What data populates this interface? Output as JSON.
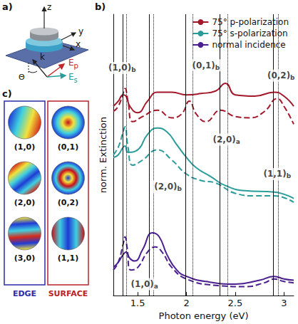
{
  "chart_data": {
    "type": "line",
    "panel_label": "b)",
    "xlabel": "Photon energy (eV)",
    "ylabel": "norm. Extinction",
    "xlim": [
      1.25,
      3.1
    ],
    "xticks": [
      1.5,
      2,
      2.5,
      3
    ],
    "ylim": [
      0,
      11
    ],
    "yticks": [],
    "tick_labels": "x",
    "grid": false,
    "legend": "top-right",
    "series": [
      {
        "name": "75° p-polarization",
        "color": "#a3172a",
        "line_style": "solid",
        "x": [
          1.25,
          1.3,
          1.35,
          1.38,
          1.42,
          1.5,
          1.6,
          1.7,
          1.85,
          2.0,
          2.15,
          2.3,
          2.4,
          2.5,
          2.7,
          2.9,
          3.0,
          3.1
        ],
        "values": [
          7.4,
          7.6,
          7.85,
          7.8,
          7.4,
          7.15,
          7.6,
          7.95,
          7.95,
          7.85,
          7.9,
          8.0,
          8.3,
          7.85,
          7.8,
          7.95,
          7.8,
          7.4
        ]
      },
      {
        "name": "75° p-polarization",
        "color": "#a3172a",
        "line_style": "dashed",
        "x": [
          1.25,
          1.3,
          1.35,
          1.37,
          1.4,
          1.45,
          1.55,
          1.7,
          1.85,
          1.95,
          2.03,
          2.1,
          2.2,
          2.35,
          2.5,
          2.65,
          2.8,
          2.93,
          3.0,
          3.1
        ],
        "values": [
          7.2,
          7.4,
          7.9,
          8.1,
          7.6,
          6.8,
          7.0,
          7.25,
          6.95,
          7.1,
          7.6,
          7.1,
          6.8,
          7.25,
          7.0,
          6.95,
          7.2,
          7.7,
          7.4,
          6.7
        ]
      },
      {
        "name": "75° s-polarization",
        "color": "#2a9c9a",
        "line_style": "solid",
        "x": [
          1.25,
          1.3,
          1.35,
          1.37,
          1.4,
          1.5,
          1.6,
          1.7,
          1.8,
          1.9,
          2.0,
          2.1,
          2.25,
          2.4,
          2.6,
          2.9,
          3.1
        ],
        "values": [
          5.4,
          5.5,
          5.8,
          5.85,
          5.6,
          5.7,
          6.3,
          6.55,
          6.4,
          5.9,
          5.4,
          5.0,
          4.65,
          4.3,
          4.1,
          4.05,
          3.8
        ]
      },
      {
        "name": "75° s-polarization",
        "color": "#2a9c9a",
        "line_style": "dashed",
        "x": [
          1.25,
          1.3,
          1.35,
          1.37,
          1.4,
          1.45,
          1.55,
          1.7,
          1.85,
          2.0,
          2.15,
          2.3,
          2.5,
          2.7,
          2.9,
          3.1
        ],
        "values": [
          5.5,
          5.8,
          6.4,
          6.6,
          5.8,
          5.1,
          5.3,
          5.7,
          5.3,
          4.75,
          4.5,
          4.4,
          4.0,
          3.9,
          3.9,
          3.65
        ]
      },
      {
        "name": "normal incidence",
        "color": "#4b1f8f",
        "line_style": "solid",
        "x": [
          1.25,
          1.3,
          1.35,
          1.38,
          1.42,
          1.47,
          1.55,
          1.65,
          1.72,
          1.8,
          1.9,
          2.0,
          2.2,
          2.5,
          2.75,
          2.9,
          3.0,
          3.1
        ],
        "values": [
          1.1,
          1.3,
          1.6,
          1.7,
          1.45,
          1.35,
          1.8,
          2.45,
          2.3,
          1.6,
          1.0,
          0.75,
          0.55,
          0.45,
          0.6,
          0.75,
          0.65,
          0.6
        ]
      },
      {
        "name": "normal incidence",
        "color": "#4b1f8f",
        "line_style": "dashed",
        "x": [
          1.25,
          1.3,
          1.35,
          1.37,
          1.39,
          1.43,
          1.5,
          1.6,
          1.68,
          1.75,
          1.85,
          2.0,
          2.3,
          2.6,
          2.8,
          2.9,
          3.0,
          3.1
        ],
        "values": [
          1.0,
          1.3,
          2.0,
          2.3,
          1.9,
          1.0,
          1.1,
          1.7,
          1.9,
          1.7,
          1.1,
          0.65,
          0.4,
          0.35,
          0.5,
          0.65,
          0.55,
          0.5
        ]
      }
    ],
    "vlines": [
      {
        "x": 1.35,
        "line_style": "solid"
      },
      {
        "x": 1.38,
        "line_style": "dotted"
      },
      {
        "x": 1.62,
        "line_style": "solid"
      },
      {
        "x": 1.66,
        "line_style": "dotted"
      },
      {
        "x": 1.99,
        "line_style": "solid"
      },
      {
        "x": 2.06,
        "line_style": "dotted"
      },
      {
        "x": 2.34,
        "line_style": "solid"
      },
      {
        "x": 2.42,
        "line_style": "dotted"
      },
      {
        "x": 2.89,
        "line_style": "solid"
      },
      {
        "x": 2.94,
        "line_style": "dotted"
      }
    ],
    "annotations": [
      {
        "text": "(1,0)",
        "sub": "b",
        "x": 1.34,
        "y": 8.9
      },
      {
        "text": "(0,1)",
        "sub": "b",
        "x": 2.2,
        "y": 9.0
      },
      {
        "text": "(0,2)",
        "sub": "b",
        "x": 2.97,
        "y": 8.6
      },
      {
        "text": "(2,0)",
        "sub": "a",
        "x": 2.41,
        "y": 6.1
      },
      {
        "text": "(2,0)",
        "sub": "b",
        "x": 1.81,
        "y": 4.25
      },
      {
        "text": "(1,1)",
        "sub": "b",
        "x": 2.93,
        "y": 4.75
      },
      {
        "text": "(1,0)",
        "sub": "a",
        "x": 1.57,
        "y": 0.45
      }
    ]
  },
  "panels": {
    "a": {
      "label": "a)",
      "z": "z",
      "y": "y",
      "x": "x",
      "k": "k",
      "theta": "Θ",
      "ep": {
        "text": "E",
        "sub": "p",
        "color": "#c0282d"
      },
      "es": {
        "text": "E",
        "sub": "s",
        "color": "#2a9c9a"
      }
    },
    "c": {
      "label": "c)",
      "groups": [
        {
          "title": "EDGE",
          "color": "#2b2ba6",
          "modes": [
            "(1,0)",
            "(2,0)",
            "(3,0)"
          ]
        },
        {
          "title": "SURFACE",
          "color": "#b8232a",
          "modes": [
            "(0,1)",
            "(0,2)",
            "(1,1)"
          ]
        }
      ]
    }
  }
}
